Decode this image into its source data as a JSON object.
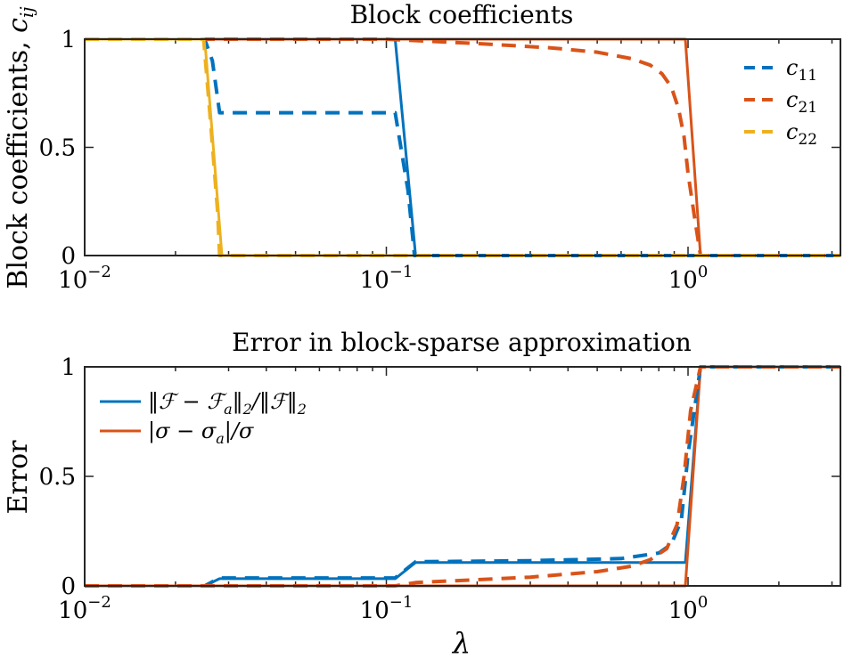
{
  "chart_data": [
    {
      "type": "line",
      "title": "Block coefficients",
      "ylabel": "Block coefficients, c_ij",
      "ylabel_parts": {
        "text": "Block coefficients, ",
        "symbol": "c",
        "sub": "ij"
      },
      "xlabel": "",
      "xscale": "log",
      "xlim": [
        0.01,
        3.2
      ],
      "ylim": [
        0,
        1
      ],
      "xticks": [
        {
          "value": 0.01,
          "base": "10",
          "exp": "−2"
        },
        {
          "value": 0.1,
          "base": "10",
          "exp": "−1"
        },
        {
          "value": 1,
          "base": "10",
          "exp": "0"
        }
      ],
      "yticks": [
        {
          "value": 0,
          "label": "0"
        },
        {
          "value": 0.5,
          "label": "0.5"
        },
        {
          "value": 1,
          "label": "1"
        }
      ],
      "legend_position": "top-right",
      "series": [
        {
          "name": "c11",
          "label_symbol": "c",
          "label_sub": "11",
          "style": "dashed",
          "color": "#0072BD",
          "legend": true,
          "x": [
            0.01,
            0.025,
            0.0265,
            0.028,
            0.05,
            0.107,
            0.118,
            0.124,
            3.2
          ],
          "y": [
            1,
            1,
            0.9,
            0.66,
            0.66,
            0.66,
            0.3,
            0,
            0
          ]
        },
        {
          "name": "c21",
          "label_symbol": "c",
          "label_sub": "21",
          "style": "dashed",
          "color": "#D95319",
          "legend": true,
          "x": [
            0.01,
            0.1,
            0.2,
            0.35,
            0.5,
            0.65,
            0.75,
            0.82,
            0.88,
            0.93,
            0.97,
            1.0,
            1.05,
            1.1,
            3.2
          ],
          "y": [
            1,
            1,
            0.98,
            0.96,
            0.94,
            0.91,
            0.88,
            0.84,
            0.78,
            0.68,
            0.55,
            0.38,
            0.18,
            0,
            0
          ]
        },
        {
          "name": "c22",
          "label_symbol": "c",
          "label_sub": "22",
          "style": "dashed",
          "color": "#EDB120",
          "legend": true,
          "x": [
            0.01,
            0.0248,
            0.0262,
            0.0276,
            0.028,
            3.2
          ],
          "y": [
            1,
            1,
            0.6,
            0.2,
            0,
            0
          ]
        },
        {
          "name": "",
          "style": "solid",
          "color": "#0072BD",
          "legend": false,
          "x": [
            0.01,
            0.107,
            0.125,
            3.2
          ],
          "y": [
            1,
            1,
            0,
            0
          ]
        },
        {
          "name": "",
          "style": "solid",
          "color": "#D95319",
          "legend": false,
          "x": [
            0.01,
            0.98,
            1.1,
            3.2
          ],
          "y": [
            1,
            1,
            0,
            0
          ]
        },
        {
          "name": "",
          "style": "solid",
          "color": "#EDB120",
          "legend": false,
          "x": [
            0.01,
            0.025,
            0.0285,
            3.2
          ],
          "y": [
            1,
            1,
            0,
            0
          ]
        }
      ]
    },
    {
      "type": "line",
      "title": "Error in block-sparse approximation",
      "ylabel": "Error",
      "xlabel": "λ",
      "xscale": "log",
      "xlim": [
        0.01,
        3.2
      ],
      "ylim": [
        0,
        1
      ],
      "xticks": [
        {
          "value": 0.01,
          "base": "10",
          "exp": "−2"
        },
        {
          "value": 0.1,
          "base": "10",
          "exp": "−1"
        },
        {
          "value": 1,
          "base": "10",
          "exp": "0"
        }
      ],
      "yticks": [
        {
          "value": 0,
          "label": "0"
        },
        {
          "value": 0.5,
          "label": "0.5"
        },
        {
          "value": 1,
          "label": "1"
        }
      ],
      "legend_position": "top-left",
      "series": [
        {
          "name": "‖ℱ − ℱa‖2/‖ℱ‖2",
          "label_parts": [
            "‖ℱ − ℱ",
            "a",
            "‖",
            "2",
            "/‖ℱ‖",
            "2"
          ],
          "style": "solid",
          "color": "#0072BD",
          "legend": true,
          "x": [
            0.01,
            0.025,
            0.028,
            0.107,
            0.125,
            0.98,
            1.1,
            3.2
          ],
          "y": [
            0,
            0,
            0.033,
            0.033,
            0.107,
            0.107,
            1,
            1
          ]
        },
        {
          "name": "|σ − σa|/σ",
          "label_parts": [
            "|σ − σ",
            "a",
            "|/σ"
          ],
          "style": "solid",
          "color": "#D95319",
          "legend": true,
          "x": [
            0.01,
            0.98,
            1.1,
            3.2
          ],
          "y": [
            0,
            0,
            1,
            1
          ]
        },
        {
          "name": "",
          "style": "dashed",
          "color": "#0072BD",
          "legend": false,
          "x": [
            0.01,
            0.025,
            0.028,
            0.107,
            0.125,
            0.3,
            0.6,
            0.8,
            0.88,
            0.95,
            1.0,
            1.1,
            3.2
          ],
          "y": [
            0,
            0,
            0.036,
            0.036,
            0.11,
            0.115,
            0.125,
            0.15,
            0.19,
            0.3,
            0.6,
            1,
            1
          ]
        },
        {
          "name": "",
          "style": "dashed",
          "color": "#D95319",
          "legend": false,
          "x": [
            0.01,
            0.107,
            0.125,
            0.3,
            0.5,
            0.65,
            0.75,
            0.85,
            0.92,
            0.97,
            1.02,
            1.1,
            3.2
          ],
          "y": [
            0,
            0,
            0.015,
            0.04,
            0.065,
            0.09,
            0.12,
            0.17,
            0.28,
            0.5,
            0.8,
            1,
            1
          ]
        }
      ]
    }
  ]
}
